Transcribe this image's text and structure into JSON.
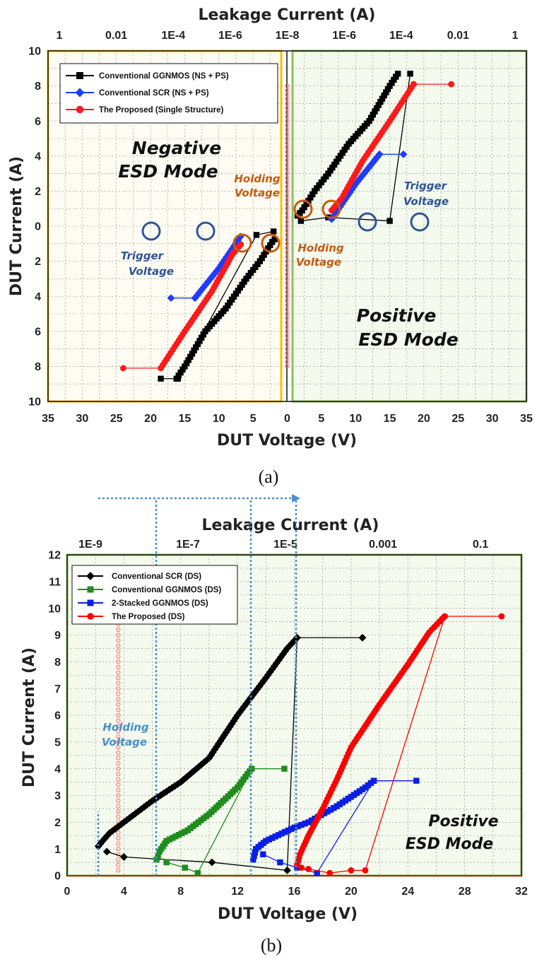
{
  "chart_data": [
    {
      "panel_label": "(a)",
      "type": "line",
      "xlabel": "DUT Voltage (V)",
      "ylabel": "DUT Current (A)",
      "x2label": "Leakage Current (A)",
      "x_ticks": [
        "35",
        "30",
        "25",
        "20",
        "15",
        "10",
        "5",
        "0",
        "5",
        "10",
        "15",
        "20",
        "25",
        "30",
        "35"
      ],
      "y_ticks": [
        "10",
        "8",
        "6",
        "4",
        "2",
        "0",
        "2",
        "4",
        "6",
        "8",
        "10"
      ],
      "x2_ticks": [
        "1",
        "0.01",
        "1E-4",
        "1E-6",
        "1E-8",
        "1E-6",
        "1E-4",
        "0.01",
        "1"
      ],
      "xlim": [
        -35,
        35
      ],
      "ylim": [
        -10,
        10
      ],
      "regions": {
        "negative": "#FFC000",
        "positive": "#8CBF5E"
      },
      "legend_placement": "top-left",
      "series": [
        {
          "name": "Conventional GGNMOS (NS + PS)",
          "color": "#000000",
          "marker": "square",
          "points": [
            [
              -16.2,
              -8.7
            ],
            [
              -15,
              -8
            ],
            [
              -12,
              -6
            ],
            [
              -9,
              -4.7
            ],
            [
              -6,
              -3
            ],
            [
              -4,
              -2
            ],
            [
              -2.2,
              -0.9
            ],
            [
              -1.5,
              -0.6
            ],
            [
              1.5,
              0.6
            ],
            [
              2.2,
              0.9
            ],
            [
              4,
              2
            ],
            [
              6,
              3
            ],
            [
              9,
              4.7
            ],
            [
              12,
              6
            ],
            [
              15,
              8
            ],
            [
              16.2,
              8.7
            ]
          ],
          "leak_points": [
            [
              -18.5,
              -8.7
            ],
            [
              -16,
              -8.7
            ],
            [
              -4.5,
              -0.5
            ],
            [
              -2,
              -0.3
            ],
            [
              2,
              0.3
            ],
            [
              6,
              0.5
            ],
            [
              15,
              0.3
            ],
            [
              18,
              8.7
            ]
          ]
        },
        {
          "name": "Conventional SCR (NS + PS)",
          "color": "#1F3CFF",
          "marker": "diamond",
          "points": [
            [
              -13.5,
              -4.1
            ],
            [
              -10,
              -2.4
            ],
            [
              -7.2,
              -0.8
            ],
            [
              -6.5,
              -0.4
            ],
            [
              6.5,
              0.4
            ],
            [
              7.2,
              0.8
            ],
            [
              10,
              2.4
            ],
            [
              13.5,
              4.1
            ]
          ],
          "leak_points": [
            [
              -17,
              -4.1
            ],
            [
              -13.5,
              -4.1
            ],
            [
              17,
              4.1
            ],
            [
              13.5,
              4.1
            ]
          ]
        },
        {
          "name": "The Proposed (Single Structure)",
          "color": "#FF1A1A",
          "marker": "circle",
          "points": [
            [
              -18.5,
              -8.1
            ],
            [
              -15,
              -6
            ],
            [
              -11,
              -3.7
            ],
            [
              -8,
              -1.6
            ],
            [
              -6.5,
              -0.9
            ],
            [
              6.5,
              0.9
            ],
            [
              8,
              1.6
            ],
            [
              11,
              3.7
            ],
            [
              15,
              6
            ],
            [
              18.5,
              8.1
            ]
          ],
          "leak_points": [
            [
              -24,
              -8.1
            ],
            [
              -18.5,
              -8.1
            ],
            [
              24,
              8.1
            ],
            [
              18.5,
              8.1
            ]
          ]
        }
      ],
      "annotations": [
        {
          "text": "Negative",
          "color": "#111111"
        },
        {
          "text": "ESD Mode",
          "color": "#111111"
        },
        {
          "text": "Holding",
          "color": "#C55A11"
        },
        {
          "text": "Voltage",
          "color": "#C55A11"
        },
        {
          "text": "Trigger",
          "color": "#2F5597"
        },
        {
          "text": "Voltage",
          "color": "#2F5597"
        },
        {
          "text": "Holding",
          "color": "#C55A11"
        },
        {
          "text": "Voltage",
          "color": "#C55A11"
        },
        {
          "text": "Trigger",
          "color": "#2F5597"
        },
        {
          "text": "Voltage",
          "color": "#2F5597"
        },
        {
          "text": "Positive",
          "color": "#111111"
        },
        {
          "text": "ESD Mode",
          "color": "#111111"
        }
      ]
    },
    {
      "panel_label": "(b)",
      "type": "line",
      "xlabel": "DUT Voltage (V)",
      "ylabel": "DUT Current (A)",
      "x2label": "Leakage Current (A)",
      "x_ticks": [
        "0",
        "4",
        "8",
        "12",
        "16",
        "20",
        "24",
        "28",
        "32"
      ],
      "y_ticks": [
        "0",
        "1",
        "2",
        "3",
        "4",
        "5",
        "6",
        "7",
        "8",
        "9",
        "10",
        "11",
        "12"
      ],
      "x2_ticks": [
        "1E-9",
        "1E-7",
        "1E-5",
        "0.001",
        "0.1"
      ],
      "xlim": [
        0,
        32
      ],
      "ylim": [
        0,
        12
      ],
      "legend_placement": "top-left",
      "series": [
        {
          "name": "Conventional SCR (DS)",
          "color": "#000000",
          "marker": "diamond",
          "points": [
            [
              2.2,
              1.1
            ],
            [
              2.5,
              1.3
            ],
            [
              3,
              1.6
            ],
            [
              4,
              2
            ],
            [
              6,
              2.8
            ],
            [
              8,
              3.5
            ],
            [
              10,
              4.4
            ],
            [
              12,
              6
            ],
            [
              14,
              7.4
            ],
            [
              15.5,
              8.5
            ],
            [
              16.2,
              8.9
            ]
          ],
          "leak_points": [
            [
              2.8,
              0.9
            ],
            [
              4,
              0.7
            ],
            [
              10.2,
              0.5
            ],
            [
              15.5,
              0.2
            ],
            [
              16.2,
              8.9
            ],
            [
              20.8,
              8.9
            ]
          ]
        },
        {
          "name": "Conventional GGNMOS (DS)",
          "color": "#1E8C1E",
          "marker": "square",
          "points": [
            [
              6.3,
              0.6
            ],
            [
              6.5,
              0.9
            ],
            [
              7,
              1.3
            ],
            [
              8.5,
              1.7
            ],
            [
              10,
              2.3
            ],
            [
              11,
              2.8
            ],
            [
              12,
              3.3
            ],
            [
              12.7,
              3.8
            ],
            [
              13,
              4.0
            ]
          ],
          "leak_points": [
            [
              7,
              0.5
            ],
            [
              8.3,
              0.3
            ],
            [
              9.2,
              0.1
            ],
            [
              13,
              4.0
            ],
            [
              15.3,
              4.0
            ]
          ]
        },
        {
          "name": "2-Stacked GGNMOS (DS)",
          "color": "#0A1EE6",
          "marker": "square",
          "points": [
            [
              13.1,
              0.6
            ],
            [
              13.3,
              1.0
            ],
            [
              14,
              1.3
            ],
            [
              16,
              1.8
            ],
            [
              17,
              2.0
            ],
            [
              19,
              2.6
            ],
            [
              21,
              3.3
            ],
            [
              21.6,
              3.55
            ]
          ],
          "leak_points": [
            [
              13.8,
              0.8
            ],
            [
              15,
              0.5
            ],
            [
              16.2,
              0.3
            ],
            [
              17.6,
              0.1
            ],
            [
              21.6,
              3.55
            ],
            [
              24.6,
              3.55
            ]
          ]
        },
        {
          "name": "The Proposed (DS)",
          "color": "#FF0000",
          "marker": "circle",
          "points": [
            [
              16.2,
              0.4
            ],
            [
              16.4,
              0.8
            ],
            [
              17,
              1.5
            ],
            [
              18,
              2.5
            ],
            [
              19,
              3.6
            ],
            [
              20,
              4.8
            ],
            [
              22,
              6.4
            ],
            [
              24,
              7.9
            ],
            [
              25.5,
              9.1
            ],
            [
              26.4,
              9.6
            ],
            [
              26.6,
              9.7
            ]
          ],
          "leak_points": [
            [
              16.5,
              0.3
            ],
            [
              17,
              0.25
            ],
            [
              18.5,
              0.1
            ],
            [
              20,
              0.2
            ],
            [
              21,
              0.2
            ],
            [
              26.6,
              9.7
            ],
            [
              30.6,
              9.7
            ]
          ]
        }
      ],
      "annotations": [
        {
          "text": "Holding",
          "color": "#4A90C8"
        },
        {
          "text": "Voltage",
          "color": "#4A90C8"
        },
        {
          "text": "Positive",
          "color": "#111111"
        },
        {
          "text": "ESD Mode",
          "color": "#111111"
        }
      ]
    }
  ]
}
